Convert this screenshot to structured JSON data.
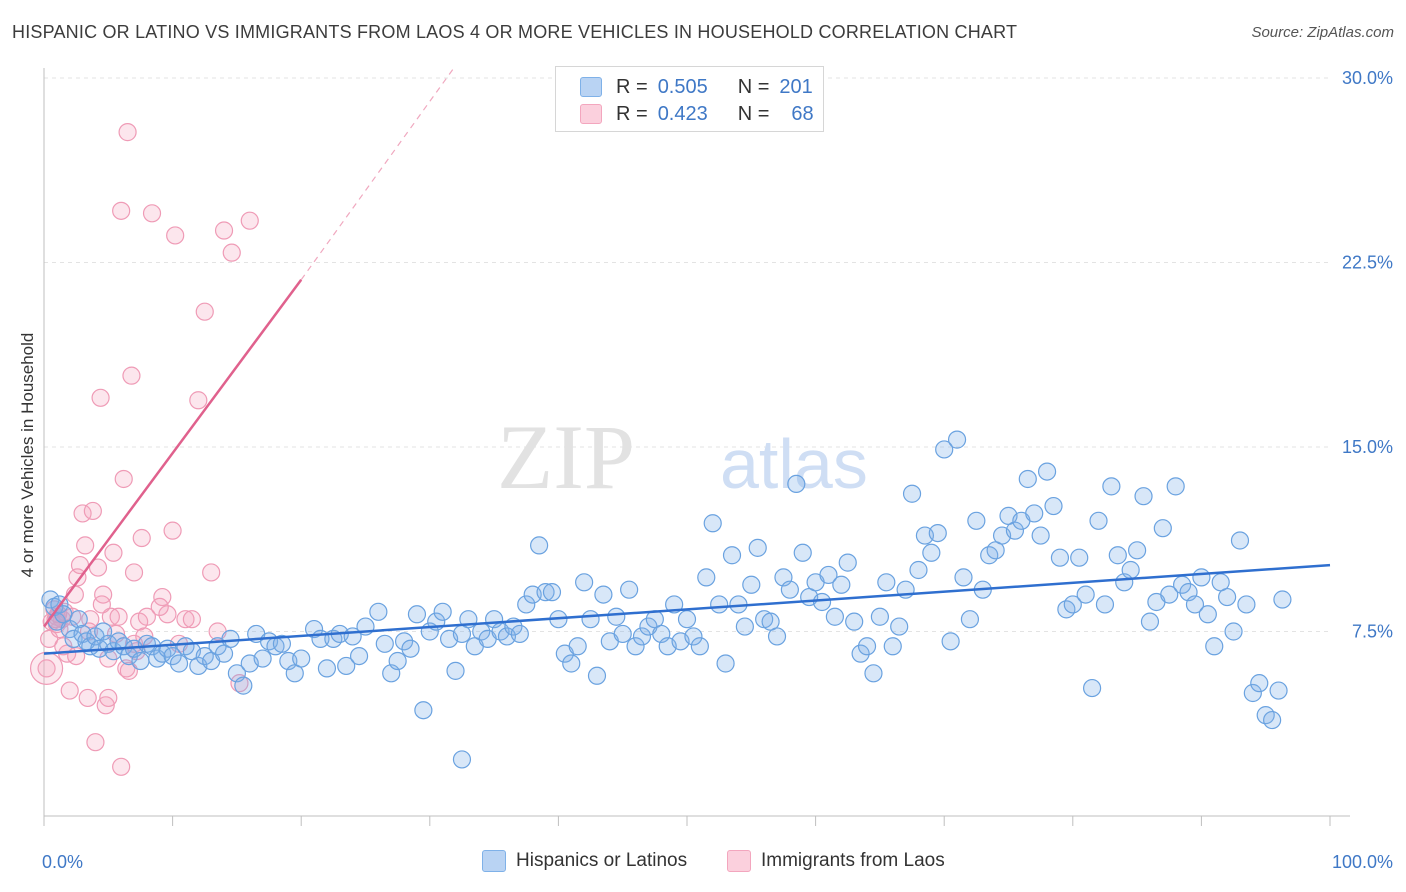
{
  "title": "HISPANIC OR LATINO VS IMMIGRANTS FROM LAOS 4 OR MORE VEHICLES IN HOUSEHOLD CORRELATION CHART",
  "source": "Source: ZipAtlas.com",
  "watermark": {
    "zip": "ZIP",
    "atlas": "atlas"
  },
  "legend": {
    "rows": [
      {
        "r_label": "R =",
        "r_value": "0.505",
        "n_label": "N =",
        "n_value": "201",
        "color": "#7fb1e8"
      },
      {
        "r_label": "R =",
        "r_value": "0.423",
        "n_label": "N =",
        "n_value": "68",
        "color": "#f3a6be"
      }
    ]
  },
  "bottom_legend": [
    "Hispanics or Latinos",
    "Immigrants from Laos"
  ],
  "chart_data": {
    "type": "scatter",
    "ylabel": "4 or more Vehicles in Household",
    "xlim": [
      0,
      100
    ],
    "ylim": [
      0,
      30
    ],
    "x_tick_labels": [
      "0.0%",
      "100.0%"
    ],
    "y_ticks": [
      7.5,
      15.0,
      22.5,
      30.0
    ],
    "y_tick_labels": [
      "7.5%",
      "15.0%",
      "22.5%",
      "30.0%"
    ],
    "grid": true,
    "legend_position": "top-center",
    "series": [
      {
        "name": "Hispanics or Latinos",
        "color": "#7fb1e8",
        "line_color": "#2f6fcf",
        "trend": {
          "x0": 0,
          "y0": 6.6,
          "x1": 100,
          "y1": 10.2
        },
        "points": [
          [
            0.5,
            8.8
          ],
          [
            0.8,
            8.5
          ],
          [
            1,
            7.9
          ],
          [
            1.2,
            8.6
          ],
          [
            1.5,
            8.2
          ],
          [
            2,
            7.6
          ],
          [
            2.3,
            7.2
          ],
          [
            2.7,
            8.0
          ],
          [
            3.0,
            7.4
          ],
          [
            3.3,
            7.1
          ],
          [
            3.6,
            6.9
          ],
          [
            4.0,
            7.3
          ],
          [
            4.3,
            6.8
          ],
          [
            4.6,
            7.5
          ],
          [
            5.0,
            7.0
          ],
          [
            5.4,
            6.7
          ],
          [
            5.8,
            7.1
          ],
          [
            6.2,
            6.9
          ],
          [
            6.6,
            6.5
          ],
          [
            7.0,
            6.8
          ],
          [
            7.5,
            6.3
          ],
          [
            8.0,
            7.0
          ],
          [
            8.4,
            6.9
          ],
          [
            8.8,
            6.4
          ],
          [
            9.2,
            6.6
          ],
          [
            9.6,
            6.8
          ],
          [
            10.0,
            6.5
          ],
          [
            10.5,
            6.2
          ],
          [
            11.0,
            6.9
          ],
          [
            11.5,
            6.7
          ],
          [
            12.0,
            6.1
          ],
          [
            12.5,
            6.5
          ],
          [
            13.0,
            6.3
          ],
          [
            13.5,
            6.9
          ],
          [
            14.0,
            6.6
          ],
          [
            14.5,
            7.2
          ],
          [
            15.0,
            5.8
          ],
          [
            15.5,
            5.3
          ],
          [
            16.0,
            6.2
          ],
          [
            16.5,
            7.4
          ],
          [
            17.0,
            6.4
          ],
          [
            17.5,
            7.1
          ],
          [
            18.0,
            6.9
          ],
          [
            18.5,
            7.0
          ],
          [
            19.0,
            6.3
          ],
          [
            19.5,
            5.8
          ],
          [
            20.0,
            6.4
          ],
          [
            21.0,
            7.6
          ],
          [
            21.5,
            7.2
          ],
          [
            22.0,
            6.0
          ],
          [
            22.5,
            7.2
          ],
          [
            23.0,
            7.4
          ],
          [
            23.5,
            6.1
          ],
          [
            24.0,
            7.3
          ],
          [
            24.5,
            6.5
          ],
          [
            25.0,
            7.7
          ],
          [
            26.0,
            8.3
          ],
          [
            26.5,
            7.0
          ],
          [
            27.0,
            5.8
          ],
          [
            27.5,
            6.3
          ],
          [
            28.0,
            7.1
          ],
          [
            28.5,
            6.8
          ],
          [
            29.0,
            8.2
          ],
          [
            29.5,
            4.3
          ],
          [
            30.0,
            7.5
          ],
          [
            30.5,
            7.9
          ],
          [
            31.0,
            8.3
          ],
          [
            31.5,
            7.2
          ],
          [
            32.0,
            5.9
          ],
          [
            32.5,
            7.4
          ],
          [
            33.0,
            8.0
          ],
          [
            33.5,
            6.9
          ],
          [
            34.0,
            7.5
          ],
          [
            34.5,
            7.2
          ],
          [
            35.0,
            8.0
          ],
          [
            35.5,
            7.5
          ],
          [
            36.0,
            7.3
          ],
          [
            36.5,
            7.7
          ],
          [
            37.0,
            7.4
          ],
          [
            37.5,
            8.6
          ],
          [
            38.0,
            9.0
          ],
          [
            38.5,
            11.0
          ],
          [
            39.0,
            9.1
          ],
          [
            39.5,
            9.1
          ],
          [
            40.0,
            8.0
          ],
          [
            40.5,
            6.6
          ],
          [
            41.0,
            6.2
          ],
          [
            41.5,
            6.9
          ],
          [
            42.0,
            9.5
          ],
          [
            42.5,
            8.0
          ],
          [
            43.0,
            5.7
          ],
          [
            43.5,
            9.0
          ],
          [
            44.0,
            7.1
          ],
          [
            44.5,
            8.1
          ],
          [
            45.0,
            7.4
          ],
          [
            45.5,
            9.2
          ],
          [
            46.0,
            6.9
          ],
          [
            46.5,
            7.3
          ],
          [
            47.0,
            7.7
          ],
          [
            47.5,
            8.0
          ],
          [
            48.0,
            7.4
          ],
          [
            48.5,
            6.9
          ],
          [
            49.0,
            8.6
          ],
          [
            49.5,
            7.1
          ],
          [
            50.0,
            8.0
          ],
          [
            50.5,
            7.3
          ],
          [
            51.0,
            6.9
          ],
          [
            51.5,
            9.7
          ],
          [
            52.0,
            11.9
          ],
          [
            52.5,
            8.6
          ],
          [
            53.0,
            6.2
          ],
          [
            53.5,
            10.6
          ],
          [
            54.0,
            8.6
          ],
          [
            54.5,
            7.7
          ],
          [
            55.0,
            9.4
          ],
          [
            55.5,
            10.9
          ],
          [
            56.0,
            8.0
          ],
          [
            56.5,
            7.9
          ],
          [
            57.0,
            7.3
          ],
          [
            57.5,
            9.7
          ],
          [
            58.0,
            9.2
          ],
          [
            58.5,
            13.5
          ],
          [
            59.0,
            10.7
          ],
          [
            59.5,
            8.9
          ],
          [
            60.0,
            9.5
          ],
          [
            60.5,
            8.7
          ],
          [
            61.0,
            9.8
          ],
          [
            61.5,
            8.1
          ],
          [
            62.0,
            9.4
          ],
          [
            62.5,
            10.3
          ],
          [
            63.0,
            7.9
          ],
          [
            63.5,
            6.6
          ],
          [
            64.0,
            6.9
          ],
          [
            64.5,
            5.8
          ],
          [
            65.0,
            8.1
          ],
          [
            65.5,
            9.5
          ],
          [
            66.0,
            6.9
          ],
          [
            66.5,
            7.7
          ],
          [
            67.0,
            9.2
          ],
          [
            67.5,
            13.1
          ],
          [
            68.0,
            10.0
          ],
          [
            68.5,
            11.4
          ],
          [
            69.0,
            10.7
          ],
          [
            69.5,
            11.5
          ],
          [
            70.0,
            14.9
          ],
          [
            70.5,
            7.1
          ],
          [
            71.0,
            15.3
          ],
          [
            71.5,
            9.7
          ],
          [
            72.0,
            8.0
          ],
          [
            72.5,
            12.0
          ],
          [
            73.0,
            9.2
          ],
          [
            73.5,
            10.6
          ],
          [
            74.0,
            10.8
          ],
          [
            74.5,
            11.4
          ],
          [
            75.0,
            12.2
          ],
          [
            75.5,
            11.6
          ],
          [
            76.0,
            12.0
          ],
          [
            76.5,
            13.7
          ],
          [
            77.0,
            12.3
          ],
          [
            77.5,
            11.4
          ],
          [
            78.0,
            14.0
          ],
          [
            78.5,
            12.6
          ],
          [
            79.0,
            10.5
          ],
          [
            79.5,
            8.4
          ],
          [
            80.0,
            8.6
          ],
          [
            80.5,
            10.5
          ],
          [
            81.0,
            9.0
          ],
          [
            81.5,
            5.2
          ],
          [
            82.0,
            12.0
          ],
          [
            82.5,
            8.6
          ],
          [
            83.0,
            13.4
          ],
          [
            83.5,
            10.6
          ],
          [
            84.0,
            9.5
          ],
          [
            84.5,
            10.0
          ],
          [
            85.0,
            10.8
          ],
          [
            85.5,
            13.0
          ],
          [
            86.0,
            7.9
          ],
          [
            86.5,
            8.7
          ],
          [
            87.0,
            11.7
          ],
          [
            87.5,
            9.0
          ],
          [
            88.0,
            13.4
          ],
          [
            88.5,
            9.4
          ],
          [
            89.0,
            9.1
          ],
          [
            89.5,
            8.6
          ],
          [
            90.0,
            9.7
          ],
          [
            90.5,
            8.2
          ],
          [
            91.0,
            6.9
          ],
          [
            91.5,
            9.5
          ],
          [
            92.0,
            8.9
          ],
          [
            92.5,
            7.5
          ],
          [
            93.0,
            11.2
          ],
          [
            93.5,
            8.6
          ],
          [
            94.0,
            5.0
          ],
          [
            94.5,
            5.4
          ],
          [
            95.0,
            4.1
          ],
          [
            95.5,
            3.9
          ],
          [
            96.0,
            5.1
          ],
          [
            96.3,
            8.8
          ],
          [
            32.5,
            2.3
          ]
        ]
      },
      {
        "name": "Immigrants from Laos",
        "color": "#f3a6be",
        "line_color": "#e0618d",
        "trend": {
          "x0": 0,
          "y0": 7.7,
          "x1": 20,
          "y1": 21.8
        },
        "trend_dashed_to": {
          "x": 32,
          "y": 30.5
        },
        "points": [
          [
            0.2,
            6.0
          ],
          [
            0.4,
            7.2
          ],
          [
            0.6,
            7.9
          ],
          [
            0.8,
            8.4
          ],
          [
            1.0,
            8.1
          ],
          [
            1.2,
            7.6
          ],
          [
            1.4,
            8.0
          ],
          [
            1.6,
            8.3
          ],
          [
            1.8,
            6.6
          ],
          [
            2.0,
            5.1
          ],
          [
            2.2,
            8.1
          ],
          [
            2.4,
            9.0
          ],
          [
            2.6,
            9.7
          ],
          [
            2.8,
            10.2
          ],
          [
            3.0,
            12.3
          ],
          [
            3.2,
            11.0
          ],
          [
            3.4,
            4.8
          ],
          [
            3.6,
            8.0
          ],
          [
            3.8,
            12.4
          ],
          [
            4.0,
            3.0
          ],
          [
            4.2,
            10.1
          ],
          [
            4.4,
            17.0
          ],
          [
            4.6,
            9.0
          ],
          [
            4.8,
            4.5
          ],
          [
            5.0,
            4.8
          ],
          [
            5.2,
            8.1
          ],
          [
            5.4,
            10.7
          ],
          [
            5.6,
            7.4
          ],
          [
            5.8,
            8.1
          ],
          [
            6.0,
            2.0
          ],
          [
            6.2,
            13.7
          ],
          [
            6.4,
            6.0
          ],
          [
            6.6,
            5.9
          ],
          [
            6.8,
            17.9
          ],
          [
            7.0,
            7.0
          ],
          [
            7.2,
            6.7
          ],
          [
            7.4,
            7.9
          ],
          [
            7.6,
            11.3
          ],
          [
            7.8,
            7.3
          ],
          [
            8.0,
            8.1
          ],
          [
            8.4,
            24.5
          ],
          [
            9.2,
            8.9
          ],
          [
            9.6,
            8.2
          ],
          [
            10.0,
            11.6
          ],
          [
            10.5,
            7.0
          ],
          [
            11.0,
            8.0
          ],
          [
            11.5,
            8.0
          ],
          [
            12.0,
            16.9
          ],
          [
            12.5,
            20.5
          ],
          [
            13.0,
            9.9
          ],
          [
            13.5,
            7.5
          ],
          [
            14.0,
            23.8
          ],
          [
            14.6,
            22.9
          ],
          [
            15.2,
            5.4
          ],
          [
            16.0,
            24.2
          ],
          [
            1.0,
            7.8
          ],
          [
            1.5,
            6.9
          ],
          [
            2.5,
            6.5
          ],
          [
            3.5,
            7.5
          ],
          [
            4.5,
            8.6
          ],
          [
            6.5,
            27.8
          ],
          [
            6.0,
            24.6
          ],
          [
            5.0,
            6.4
          ],
          [
            7.0,
            9.9
          ],
          [
            9.0,
            8.5
          ],
          [
            10.2,
            23.6
          ],
          [
            1.1,
            8.2
          ],
          [
            0.9,
            8.0
          ]
        ]
      }
    ]
  }
}
